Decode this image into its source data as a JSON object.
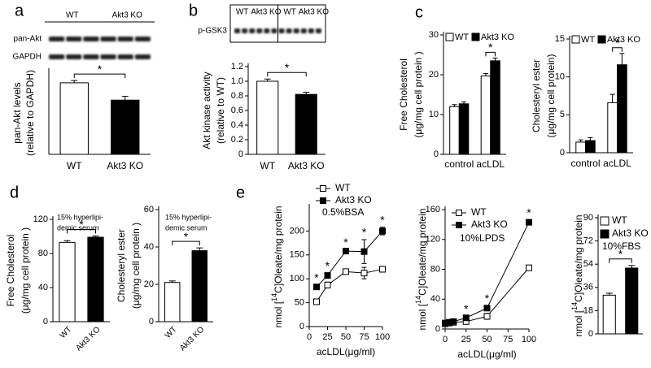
{
  "chart_data": [
    {
      "type": "bar",
      "panel": "a",
      "blot": {
        "lanes": [
          "WT",
          "Akt3 KO"
        ],
        "rows": [
          "pan-Akt",
          "GAPDH"
        ]
      },
      "y_label": [
        "pan-Akt levels",
        "(relative to GAPDH)"
      ],
      "categories": [
        "WT",
        "Akt3 KO"
      ],
      "values": [
        0.95,
        0.72
      ],
      "errors": [
        0.03,
        0.05
      ],
      "colors": [
        "#ffffff",
        "#000000"
      ],
      "ylim": [
        0,
        1.1
      ],
      "annotations": [
        {
          "text": "*"
        }
      ]
    },
    {
      "type": "bar",
      "panel": "b",
      "blot": {
        "lanes": [
          "WT",
          "Akt3 KO",
          "WT",
          "Akt3 KO"
        ],
        "rows": [
          "p-GSK3"
        ]
      },
      "y_label": [
        "Akt kinase activity",
        "(relative to WT)"
      ],
      "categories": [
        "WT",
        "Akt3 KO"
      ],
      "values": [
        1.0,
        0.82
      ],
      "errors": [
        0.03,
        0.03
      ],
      "colors": [
        "#ffffff",
        "#000000"
      ],
      "ylim": [
        0,
        1.2
      ],
      "yticks": [
        0,
        0.2,
        0.4,
        0.6,
        0.8,
        {
          "value": 1,
          "label": "1.0"
        },
        1.2
      ],
      "annotations": [
        {
          "text": "*"
        }
      ]
    },
    {
      "type": "grouped_bar",
      "panel": "c",
      "y_label": [
        "Free Cholesterol",
        "(μg/mg cell  protein )"
      ],
      "categories": [
        "control",
        "acLDL"
      ],
      "series": [
        {
          "name": "WT",
          "color": "#ffffff",
          "values": [
            12,
            19.7
          ],
          "errors": [
            0.5,
            0.6
          ]
        },
        {
          "name": "Akt3 KO",
          "color": "#000000",
          "values": [
            12.7,
            23.5
          ],
          "errors": [
            0.5,
            0.7
          ]
        }
      ],
      "ylim": [
        0,
        30
      ],
      "yticks": [
        0,
        10,
        20,
        30
      ],
      "annotations": [
        {
          "category": 1,
          "text": "*"
        }
      ]
    },
    {
      "type": "grouped_bar",
      "y_label": [
        "Cholesteryl ester",
        "(μg/mg cell  protein)"
      ],
      "categories": [
        "control",
        "acLDL"
      ],
      "series": [
        {
          "name": "WT",
          "color": "#ffffff",
          "values": [
            1.4,
            6.6
          ],
          "errors": [
            0.3,
            1.1
          ]
        },
        {
          "name": "Akt3 KO",
          "color": "#000000",
          "values": [
            1.6,
            11.6
          ],
          "errors": [
            0.4,
            1.5
          ]
        }
      ],
      "ylim": [
        0,
        15
      ],
      "yticks": [
        0,
        5,
        10,
        15
      ],
      "annotations": [
        {
          "category": 1,
          "text": "*"
        }
      ]
    },
    {
      "type": "bar",
      "panel": "d",
      "y_label": [
        "Free Cholesterol",
        "(μg/mg cell  protein )"
      ],
      "note": [
        "15% hyperlipi-",
        "demic serum"
      ],
      "categories": [
        "WT",
        "Akt3 KO"
      ],
      "values": [
        93,
        99
      ],
      "errors": [
        2,
        1.5
      ],
      "colors": [
        "#ffffff",
        "#000000"
      ],
      "ylim": [
        0,
        120
      ],
      "yticks": [
        0,
        40,
        80,
        120
      ],
      "annotations": [
        {
          "text": "*"
        }
      ]
    },
    {
      "type": "bar",
      "y_label": [
        "Cholesteryl ester",
        "(μg/mg cell  protein )"
      ],
      "note": [
        "15% hyperlipi-",
        "demic  serum"
      ],
      "categories": [
        "WT",
        "Akt3 KO"
      ],
      "values": [
        21,
        38
      ],
      "errors": [
        0.8,
        1.5
      ],
      "colors": [
        "#ffffff",
        "#000000"
      ],
      "ylim": [
        0,
        60
      ],
      "yticks": [
        0,
        20,
        40,
        60
      ],
      "annotations": [
        {
          "text": "*"
        }
      ]
    },
    {
      "type": "line",
      "panel": "e",
      "y_label": {
        "pre": "nmol [",
        "sup": "14",
        "post": "C]Oleate/mg protein"
      },
      "x_label": "acLDL(μg/ml)",
      "note": [
        "0.5%BSA"
      ],
      "x": [
        10,
        25,
        50,
        75,
        100
      ],
      "xlim": [
        0,
        100
      ],
      "xticks": [
        0,
        25,
        50,
        75,
        100
      ],
      "ylim": [
        0,
        250
      ],
      "yticks": [
        0,
        50,
        100,
        150,
        200
      ],
      "series": [
        {
          "name": "WT",
          "color": "#ffffff",
          "values": [
            52,
            87,
            115,
            112,
            120
          ],
          "errors": [
            5,
            6,
            5,
            12,
            6
          ]
        },
        {
          "name": "Akt3 KO",
          "color": "#000000",
          "values": [
            83,
            107,
            158,
            157,
            200
          ],
          "errors": [
            4,
            5,
            3,
            25,
            8
          ]
        }
      ],
      "annotations": [
        {
          "x": 10,
          "text": "*"
        },
        {
          "x": 25,
          "text": "*"
        },
        {
          "x": 50,
          "text": "*"
        },
        {
          "x": 75,
          "text": "*"
        },
        {
          "x": 100,
          "text": "*"
        }
      ]
    },
    {
      "type": "line",
      "y_label": {
        "pre": "nmol [",
        "sup": "14",
        "post": "C]Oleate/mg protein"
      },
      "x_label": "acLDL(μg/ml)",
      "note": [
        "10%LPDS"
      ],
      "x": [
        0,
        5,
        10,
        25,
        50,
        100
      ],
      "xlim": [
        0,
        100
      ],
      "xticks": [
        0,
        25,
        50,
        75,
        100
      ],
      "ylim": [
        0,
        160
      ],
      "yticks": [
        0,
        40,
        80,
        120,
        160
      ],
      "series": [
        {
          "name": "WT",
          "color": "#ffffff",
          "values": [
            7,
            8,
            9,
            10,
            17,
            82
          ],
          "errors": [
            1,
            1,
            1,
            2,
            4,
            3
          ]
        },
        {
          "name": "Akt3 KO",
          "color": "#000000",
          "values": [
            8,
            9,
            10,
            15,
            28,
            143
          ],
          "errors": [
            1,
            1,
            1,
            2,
            3,
            3
          ]
        }
      ],
      "annotations": [
        {
          "x": 25,
          "text": "*"
        },
        {
          "x": 50,
          "text": "*"
        },
        {
          "x": 100,
          "text": "*"
        }
      ]
    },
    {
      "type": "bar",
      "y_label": {
        "pre": "nmol [",
        "sup": "14",
        "post": "C]Oleate/mg protein"
      },
      "note": [
        "10%FBS"
      ],
      "legend": [
        "WT",
        "Akt3 KO"
      ],
      "values": [
        30,
        51
      ],
      "errors": [
        1.5,
        2
      ],
      "colors": [
        "#ffffff",
        "#000000"
      ],
      "ylim": [
        0,
        90
      ],
      "yticks": [
        0,
        18,
        36,
        54,
        72,
        90
      ],
      "annotations": [
        {
          "text": "*"
        }
      ]
    }
  ]
}
